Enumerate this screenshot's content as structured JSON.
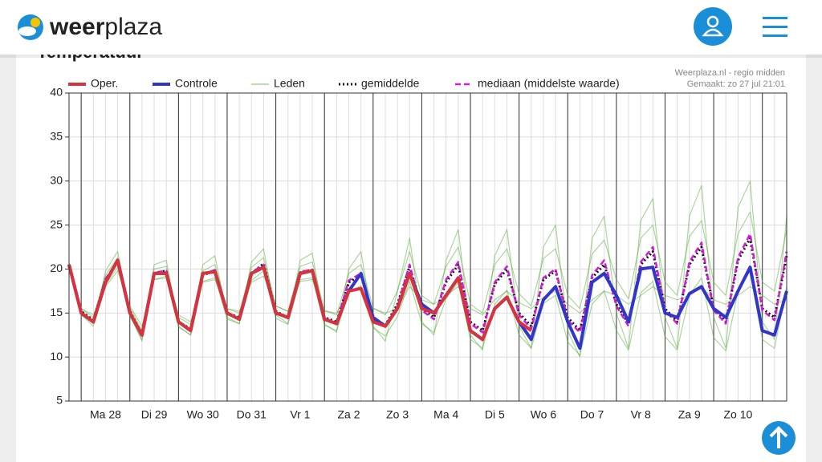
{
  "header": {
    "logo_bold": "weer",
    "logo_light": "plaza"
  },
  "card_title": "Temperatuur",
  "chart_data": {
    "type": "line",
    "source": "Weerplaza.nl - regio midden",
    "created": "Gemaakt: zo 27 jul 21:01",
    "legend": "top",
    "grid": true,
    "ylim": [
      5,
      40
    ],
    "yticks": [
      5,
      10,
      15,
      20,
      25,
      30,
      35,
      40
    ],
    "categories": [
      null,
      null,
      null,
      "Ma 28",
      null,
      null,
      null,
      "Di 29",
      null,
      null,
      null,
      "Wo 30",
      null,
      null,
      null,
      "Do 31",
      null,
      null,
      null,
      "Vr 1",
      null,
      null,
      null,
      "Za 2",
      null,
      null,
      null,
      "Zo 3",
      null,
      null,
      null,
      "Ma 4",
      null,
      null,
      null,
      "Di 5",
      null,
      null,
      null,
      "Wo 6",
      null,
      null,
      null,
      "Do 7",
      null,
      null,
      null,
      "Vr 8",
      null,
      null,
      null,
      "Za 9",
      null,
      null,
      null,
      "Zo 10",
      null,
      null,
      null,
      null
    ],
    "series": [
      {
        "name": "Oper.",
        "color": "#d8333c",
        "style": "solid",
        "values": [
          20.5,
          15,
          14,
          18.5,
          21,
          15,
          12.5,
          19.5,
          19.5,
          14,
          13,
          19.5,
          19.7,
          15,
          14.3,
          19.5,
          20.2,
          15,
          14.5,
          19.5,
          19.8,
          14.3,
          13.8,
          17.5,
          17.8,
          14,
          13.5,
          15.5,
          19.5,
          15.5,
          15,
          17,
          19,
          13,
          12,
          15.5,
          16.8,
          14,
          13,
          null,
          null,
          null,
          null,
          null,
          null,
          null,
          null,
          null,
          null,
          null,
          null,
          null,
          null,
          null,
          null,
          null,
          null,
          null,
          null,
          null
        ]
      },
      {
        "name": "Controle",
        "color": "#3236c8",
        "style": "solid",
        "values": [
          20.5,
          15,
          14,
          18.5,
          21,
          15,
          12.5,
          19.5,
          19.5,
          14,
          13,
          19.5,
          19.7,
          15,
          14.3,
          19.5,
          20.2,
          15,
          14.5,
          19.5,
          19.8,
          14.3,
          13.8,
          17.5,
          19.5,
          14.5,
          13.5,
          15.5,
          19.5,
          16,
          15,
          17,
          19,
          13,
          12,
          15.5,
          16.8,
          14,
          12,
          16.5,
          18,
          14,
          11,
          18.5,
          19.5,
          17,
          14,
          20,
          20.2,
          15,
          14.5,
          17.2,
          18,
          15.5,
          14.5,
          17.5,
          20.2,
          13,
          12.5,
          17.5
        ]
      },
      {
        "name": "Leden",
        "color": "#4aa52a",
        "style": "thin",
        "members": [
          [
            20.8,
            14.8,
            13.5,
            19.8,
            22,
            14.8,
            11.8,
            20.5,
            21,
            13.5,
            12.5,
            20.5,
            21.5,
            14.5,
            13.8,
            20.8,
            22.3,
            14.8,
            13.8,
            21,
            21.8,
            13.8,
            12.8,
            20,
            22,
            13.5,
            11.8,
            17.5,
            23.5,
            14,
            12.5,
            21,
            24.5,
            12.5,
            10.8,
            21.5,
            24.5,
            13.5,
            11,
            22.5,
            25,
            13,
            10,
            23.5,
            26,
            15,
            11,
            25.5,
            28,
            14.5,
            11,
            26,
            29.5,
            14.5,
            11,
            27,
            30,
            14,
            12,
            26
          ],
          [
            20,
            15.5,
            14.8,
            18,
            19.8,
            15.8,
            13.5,
            18.8,
            19,
            14.8,
            14,
            18.5,
            18.8,
            15.5,
            15.2,
            18.5,
            19.2,
            15.8,
            15.2,
            18.6,
            18.8,
            15.2,
            15,
            17.5,
            17.8,
            15.5,
            15,
            15.5,
            18,
            16.5,
            16,
            17,
            18,
            15.5,
            14.8,
            16.5,
            17.5,
            16.2,
            15.5,
            16.8,
            17.5,
            16,
            15,
            16.5,
            17.5,
            17,
            16,
            17,
            18,
            17,
            16.5,
            17,
            18,
            16.5,
            16,
            17,
            18,
            17,
            16,
            16.5
          ],
          [
            20.5,
            15.5,
            14.5,
            19.3,
            21.3,
            15.6,
            13,
            20,
            20.3,
            14.5,
            13.7,
            19.8,
            20.5,
            15.5,
            15,
            20.2,
            21.3,
            15.8,
            15.2,
            20.3,
            20.8,
            15.3,
            14.8,
            19.5,
            20.5,
            15.6,
            14.8,
            17.5,
            22,
            17,
            16,
            20.3,
            22.5,
            16,
            15,
            20.5,
            22.3,
            17.2,
            15.8,
            21.2,
            22.3,
            17,
            15.5,
            21.7,
            23.3,
            18.8,
            16.6,
            23.5,
            25,
            18.5,
            17,
            23.7,
            25.5,
            18.5,
            17,
            24,
            26.5,
            18.5,
            17.5,
            24.5
          ],
          [
            20,
            14.8,
            13.8,
            18.2,
            20.2,
            14.7,
            12,
            18.8,
            19.2,
            13.4,
            12.5,
            18.6,
            19,
            14.3,
            13.8,
            18.7,
            19.8,
            14.4,
            13.7,
            18.8,
            19,
            13.6,
            13,
            17.4,
            18.1,
            13.3,
            12.4,
            14.6,
            18.6,
            13.8,
            12.8,
            16.6,
            18.5,
            12,
            11,
            16,
            17.6,
            12.5,
            11,
            16.1,
            17,
            11.7,
            10.2,
            16,
            17.5,
            13,
            10.8,
            17.3,
            18.6,
            12.3,
            10.8,
            17,
            19,
            12.2,
            10.7,
            17.5,
            19.8,
            12,
            11,
            18
          ]
        ]
      },
      {
        "name": "gemiddelde",
        "color": "#111111",
        "style": "dotted",
        "values": [
          20.3,
          15.2,
          14.2,
          18.8,
          20.8,
          15.2,
          12.6,
          19.5,
          19.8,
          14,
          13.2,
          19.3,
          19.8,
          15,
          14.5,
          19.5,
          20.6,
          15.2,
          14.5,
          19.6,
          19.9,
          14.5,
          14,
          18.5,
          19.3,
          14.5,
          13.6,
          16,
          20.3,
          15.5,
          14.5,
          18.5,
          20.5,
          14,
          13,
          18.3,
          20,
          15,
          13.5,
          18.8,
          19.8,
          14.5,
          13,
          19,
          20.5,
          16,
          13.8,
          20.5,
          22,
          15.5,
          14,
          20.5,
          22.5,
          15.5,
          14,
          21,
          23.5,
          15.5,
          14.5,
          21.5
        ]
      },
      {
        "name": "mediaan (middelste waarde)",
        "color": "#d41ad4",
        "style": "dashed",
        "values": [
          20.4,
          15.1,
          14.1,
          18.9,
          20.9,
          15.1,
          12.5,
          19.6,
          19.8,
          13.9,
          13.1,
          19.4,
          19.9,
          15,
          14.4,
          19.6,
          20.5,
          15.1,
          14.4,
          19.7,
          19.9,
          14.4,
          13.9,
          18.7,
          19.5,
          14.3,
          13.5,
          15.8,
          20.5,
          15.3,
          14.3,
          18.8,
          20.8,
          13.8,
          12.8,
          18.5,
          20.3,
          14.8,
          13.2,
          19,
          20,
          14.2,
          12.8,
          19.3,
          21,
          15.8,
          13.5,
          20.8,
          22.5,
          15.3,
          13.8,
          20.8,
          23,
          15.3,
          13.8,
          21.3,
          24,
          15.3,
          14.2,
          22
        ]
      }
    ]
  }
}
